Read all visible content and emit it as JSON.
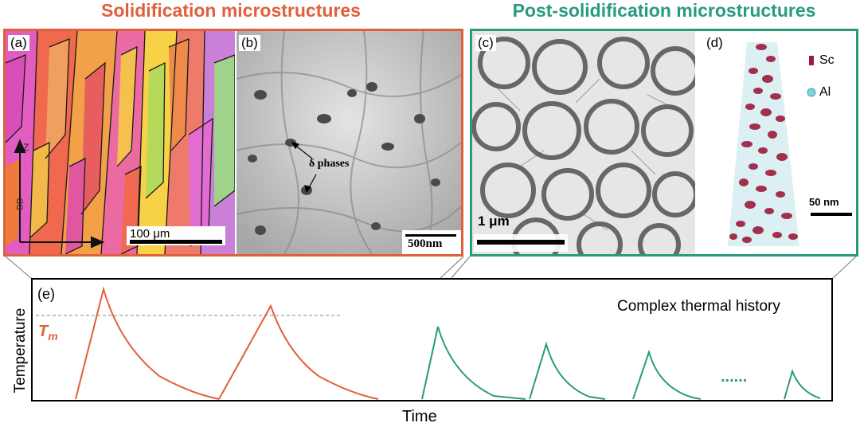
{
  "header": {
    "left_title": "Solidification microstructures",
    "right_title": "Post-solidification microstructures"
  },
  "panels": {
    "a": {
      "label": "(a)",
      "scale_bar": "100 μm",
      "axis_z": "Z",
      "axis_bd": "BD"
    },
    "b": {
      "label": "(b)",
      "annotation": "δ phases",
      "scale_bar": "500nm"
    },
    "c": {
      "label": "(c)",
      "scale_bar": "1 μm"
    },
    "d": {
      "label": "(d)",
      "legend": [
        "Sc",
        "Al"
      ],
      "scale_bar": "50 nm"
    }
  },
  "timeline": {
    "label": "(e)",
    "title": "Complex thermal history",
    "melting_label": "T",
    "melting_sub": "m",
    "x_label": "Time",
    "y_label": "Temperature",
    "ellipsis": "......"
  },
  "colors": {
    "solidification": "#e0603d",
    "post_solidification": "#2a9a7f"
  }
}
